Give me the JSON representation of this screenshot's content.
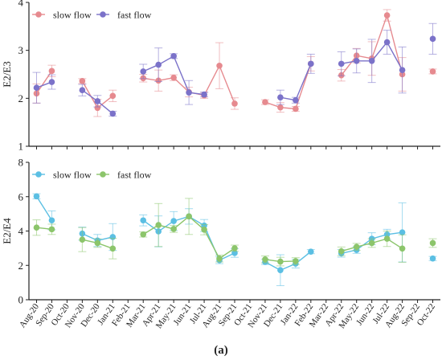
{
  "figure_label": "(a)",
  "colors": {
    "top_slow": "#e68a8f",
    "top_fast": "#7b72c9",
    "bottom_slow": "#5bbfe3",
    "bottom_fast": "#8cc56b",
    "axis": "#222222"
  },
  "chart_data": [
    {
      "type": "line",
      "ylabel": "E2/E3",
      "ylim": [
        1,
        4
      ],
      "yticks": [
        1,
        2,
        3,
        4
      ],
      "categories": [
        "Aug-20",
        "Sep-20",
        "Oct-20",
        "Nov-20",
        "Dec-20",
        "Jan-21",
        "Feb-21",
        "Mar-21",
        "Apr-21",
        "May-21",
        "Jun-21",
        "Jul-21",
        "Aug-21",
        "Sep-21",
        "Oct-21",
        "Nov-21",
        "Dec-21",
        "Jan-22",
        "Feb-22",
        "Mar-22",
        "Apr-22",
        "May-22",
        "Jun-22",
        "Jul-22",
        "Aug-22",
        "Sep-22",
        "Oct-22"
      ],
      "legend": "top-left",
      "series": [
        {
          "name": "slow flow",
          "values": [
            2.1,
            2.57,
            null,
            2.36,
            1.8,
            2.05,
            null,
            2.42,
            2.37,
            2.43,
            2.13,
            2.06,
            2.68,
            1.89,
            null,
            1.92,
            1.81,
            1.78,
            2.72,
            null,
            2.48,
            2.89,
            2.83,
            3.73,
            2.5,
            null,
            2.56
          ],
          "errors": [
            0.2,
            0.12,
            null,
            0.05,
            0.18,
            0.12,
            null,
            0.08,
            0.22,
            0.06,
            0.1,
            0.06,
            0.48,
            0.12,
            null,
            0.05,
            0.1,
            0.05,
            0.15,
            null,
            0.12,
            0.15,
            0.35,
            0.12,
            0.35,
            null,
            0.05
          ]
        },
        {
          "name": "fast flow",
          "values": [
            2.22,
            2.34,
            null,
            2.17,
            1.94,
            1.68,
            null,
            2.56,
            2.7,
            2.88,
            2.12,
            2.08,
            null,
            null,
            null,
            null,
            2.02,
            1.96,
            2.72,
            null,
            2.72,
            2.78,
            2.78,
            3.17,
            2.59,
            null,
            3.24
          ],
          "errors": [
            0.32,
            0.15,
            null,
            0.12,
            0.12,
            0.05,
            null,
            0.15,
            0.35,
            0.05,
            0.25,
            0.05,
            null,
            null,
            null,
            null,
            0.15,
            0.06,
            0.2,
            null,
            0.25,
            0.25,
            0.45,
            0.25,
            0.48,
            null,
            0.32
          ]
        }
      ]
    },
    {
      "type": "line",
      "ylabel": "E2/E4",
      "ylim": [
        0,
        8
      ],
      "yticks": [
        0,
        2,
        4,
        6,
        8
      ],
      "categories": [
        "Aug-20",
        "Sep-20",
        "Oct-20",
        "Nov-20",
        "Dec-20",
        "Jan-21",
        "Feb-21",
        "Mar-21",
        "Apr-21",
        "May-21",
        "Jun-21",
        "Jul-21",
        "Aug-21",
        "Sep-21",
        "Oct-21",
        "Nov-21",
        "Dec-21",
        "Jan-22",
        "Feb-22",
        "Mar-22",
        "Apr-22",
        "May-22",
        "Jun-22",
        "Jul-22",
        "Aug-22",
        "Sep-22",
        "Oct-22"
      ],
      "legend": "top-left",
      "series": [
        {
          "name": "slow flow",
          "values": [
            6.02,
            4.62,
            null,
            3.85,
            3.45,
            3.65,
            null,
            4.62,
            3.98,
            4.58,
            4.85,
            4.32,
            2.3,
            2.72,
            null,
            2.2,
            1.72,
            2.1,
            2.8,
            null,
            2.7,
            2.9,
            3.55,
            3.8,
            3.92,
            null,
            2.4
          ],
          "errors": [
            0.15,
            0.55,
            null,
            0.38,
            0.35,
            0.78,
            null,
            0.32,
            0.9,
            0.55,
            0.45,
            0.35,
            0.2,
            0.25,
            null,
            0.15,
            0.9,
            0.25,
            0.12,
            null,
            0.22,
            0.2,
            0.35,
            0.3,
            1.72,
            null,
            0.12
          ]
        },
        {
          "name": "fast flow",
          "values": [
            4.2,
            4.1,
            null,
            3.5,
            3.3,
            2.98,
            null,
            3.8,
            4.35,
            4.12,
            4.85,
            4.08,
            2.4,
            3.0,
            null,
            2.35,
            2.22,
            2.25,
            null,
            null,
            2.82,
            3.08,
            3.3,
            3.55,
            2.98,
            null,
            3.3
          ],
          "errors": [
            0.45,
            0.3,
            null,
            0.7,
            0.25,
            0.6,
            null,
            0.15,
            1.25,
            0.2,
            1.05,
            0.3,
            0.2,
            0.18,
            null,
            0.2,
            0.25,
            0.2,
            null,
            null,
            0.25,
            0.2,
            0.25,
            0.45,
            0.8,
            null,
            0.25
          ]
        }
      ]
    }
  ]
}
